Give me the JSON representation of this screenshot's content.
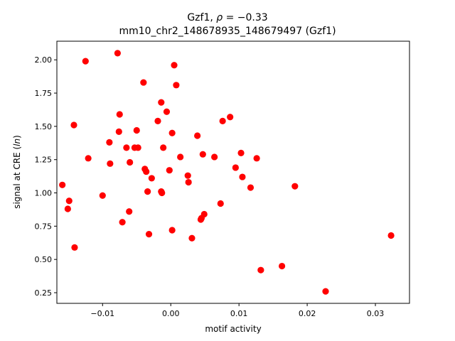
{
  "chart_data": {
    "type": "scatter",
    "title": "Gzf1, ρ = −0.33",
    "subtitle": "mm10_chr2_148678935_148679497 (Gzf1)",
    "xlabel": "motif activity",
    "ylabel": "signal at CRE (ln)",
    "xlim": [
      -0.0167,
      0.035
    ],
    "ylim": [
      0.17,
      2.14
    ],
    "xticks": [
      -0.01,
      0.0,
      0.01,
      0.02,
      0.03
    ],
    "xtick_labels": [
      "−0.01",
      "0.00",
      "0.01",
      "0.02",
      "0.03"
    ],
    "yticks": [
      0.25,
      0.5,
      0.75,
      1.0,
      1.25,
      1.5,
      1.75,
      2.0
    ],
    "ytick_labels": [
      "0.25",
      "0.50",
      "0.75",
      "1.00",
      "1.25",
      "1.50",
      "1.75",
      "2.00"
    ],
    "grid": false,
    "marker_color": "#ff0000",
    "points": [
      [
        -0.0125,
        1.99
      ],
      [
        -0.0078,
        2.05
      ],
      [
        0.0005,
        1.96
      ],
      [
        -0.004,
        1.83
      ],
      [
        0.0008,
        1.81
      ],
      [
        -0.0014,
        1.68
      ],
      [
        -0.0006,
        1.61
      ],
      [
        -0.0075,
        1.59
      ],
      [
        0.0087,
        1.57
      ],
      [
        0.0076,
        1.54
      ],
      [
        -0.0019,
        1.54
      ],
      [
        -0.0142,
        1.51
      ],
      [
        -0.0076,
        1.46
      ],
      [
        -0.005,
        1.47
      ],
      [
        0.0002,
        1.45
      ],
      [
        0.0039,
        1.43
      ],
      [
        -0.009,
        1.38
      ],
      [
        -0.0065,
        1.34
      ],
      [
        -0.0053,
        1.34
      ],
      [
        -0.0048,
        1.34
      ],
      [
        -0.0011,
        1.34
      ],
      [
        0.0047,
        1.29
      ],
      [
        0.0103,
        1.3
      ],
      [
        -0.0121,
        1.26
      ],
      [
        0.0014,
        1.27
      ],
      [
        0.0064,
        1.27
      ],
      [
        0.0126,
        1.26
      ],
      [
        -0.006,
        1.23
      ],
      [
        -0.0089,
        1.22
      ],
      [
        0.0095,
        1.19
      ],
      [
        -0.0038,
        1.18
      ],
      [
        -0.0036,
        1.16
      ],
      [
        -0.0002,
        1.17
      ],
      [
        0.0025,
        1.13
      ],
      [
        0.0105,
        1.12
      ],
      [
        -0.0028,
        1.11
      ],
      [
        0.0026,
        1.08
      ],
      [
        -0.0159,
        1.06
      ],
      [
        0.0117,
        1.04
      ],
      [
        0.0182,
        1.05
      ],
      [
        -0.0034,
        1.01
      ],
      [
        -0.0014,
        1.01
      ],
      [
        -0.0013,
        1.0
      ],
      [
        -0.01,
        0.98
      ],
      [
        -0.0149,
        0.94
      ],
      [
        0.0073,
        0.92
      ],
      [
        -0.0151,
        0.88
      ],
      [
        -0.0061,
        0.86
      ],
      [
        0.0049,
        0.84
      ],
      [
        0.0045,
        0.81
      ],
      [
        0.0044,
        0.8
      ],
      [
        -0.0071,
        0.78
      ],
      [
        0.0002,
        0.72
      ],
      [
        -0.0032,
        0.69
      ],
      [
        0.0031,
        0.66
      ],
      [
        0.0323,
        0.68
      ],
      [
        -0.0141,
        0.59
      ],
      [
        0.0163,
        0.45
      ],
      [
        0.0132,
        0.42
      ],
      [
        0.0227,
        0.26
      ]
    ]
  }
}
